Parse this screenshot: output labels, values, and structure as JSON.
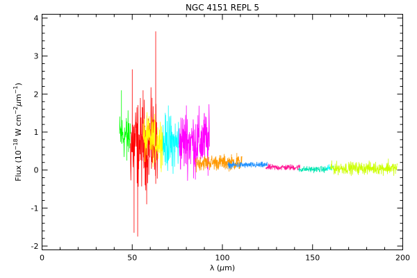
{
  "chart_data": {
    "type": "line",
    "title": "NGC 4151 REPL 5",
    "xlabel": "λ (μm)",
    "ylabel": "Flux (10^-18 W cm^-2 μm^-1)",
    "xlim": [
      0,
      200
    ],
    "ylim": [
      -2.1,
      4.1
    ],
    "x_ticks": [
      "0",
      "50",
      "100",
      "150",
      "200"
    ],
    "y_ticks": [
      "-2",
      "-1",
      "0",
      "1",
      "2",
      "3",
      "4"
    ],
    "grid": false,
    "series": [
      {
        "color": "#00ff00",
        "x_range": [
          43,
          49
        ],
        "level": 0.9,
        "noise": 0.3,
        "spikes": [
          [
            44,
            2.1
          ],
          [
            47,
            0.25
          ]
        ]
      },
      {
        "color": "#ff0000",
        "x_range": [
          49,
          64
        ],
        "level": 0.7,
        "noise": 0.55,
        "spikes": [
          [
            50,
            2.65
          ],
          [
            51,
            -1.65
          ],
          [
            53,
            -1.75
          ],
          [
            56,
            2.1
          ],
          [
            58,
            -0.9
          ],
          [
            61,
            1.9
          ],
          [
            63,
            3.65
          ]
        ]
      },
      {
        "color": "#ffff00",
        "x_range": [
          56,
          67
        ],
        "level": 0.8,
        "noise": 0.3,
        "spikes": [
          [
            59,
            1.3
          ],
          [
            66,
            0.3
          ]
        ]
      },
      {
        "color": "#00ffff",
        "x_range": [
          67,
          76
        ],
        "level": 0.7,
        "noise": 0.35,
        "spikes": [
          [
            70,
            1.7
          ],
          [
            72,
            0.1
          ]
        ]
      },
      {
        "color": "#ff00ff",
        "x_range": [
          76,
          93
        ],
        "level": 0.75,
        "noise": 0.4,
        "spikes": [
          [
            80,
            1.7
          ],
          [
            85,
            -0.25
          ],
          [
            90,
            1.5
          ],
          [
            92,
            -0.15
          ]
        ]
      },
      {
        "color": "#ff9900",
        "x_range": [
          85,
          111
        ],
        "level": 0.2,
        "noise": 0.1,
        "spikes": [
          [
            108,
            0.45
          ],
          [
            110,
            0.05
          ]
        ]
      },
      {
        "color": "#1e90ff",
        "x_range": [
          103,
          125
        ],
        "level": 0.13,
        "noise": 0.04,
        "spikes": []
      },
      {
        "color": "#ff1493",
        "x_range": [
          124,
          143
        ],
        "level": 0.07,
        "noise": 0.04,
        "spikes": []
      },
      {
        "color": "#00e5b0",
        "x_range": [
          142,
          158
        ],
        "level": 0.02,
        "noise": 0.04,
        "spikes": []
      },
      {
        "color": "#00ffff",
        "x_range": [
          158,
          162
        ],
        "level": 0.05,
        "noise": 0.05,
        "spikes": []
      },
      {
        "color": "#ccff00",
        "x_range": [
          160,
          197
        ],
        "level": 0.05,
        "noise": 0.08,
        "spikes": [
          [
            192,
            0.3
          ],
          [
            196,
            -0.1
          ]
        ]
      }
    ]
  }
}
